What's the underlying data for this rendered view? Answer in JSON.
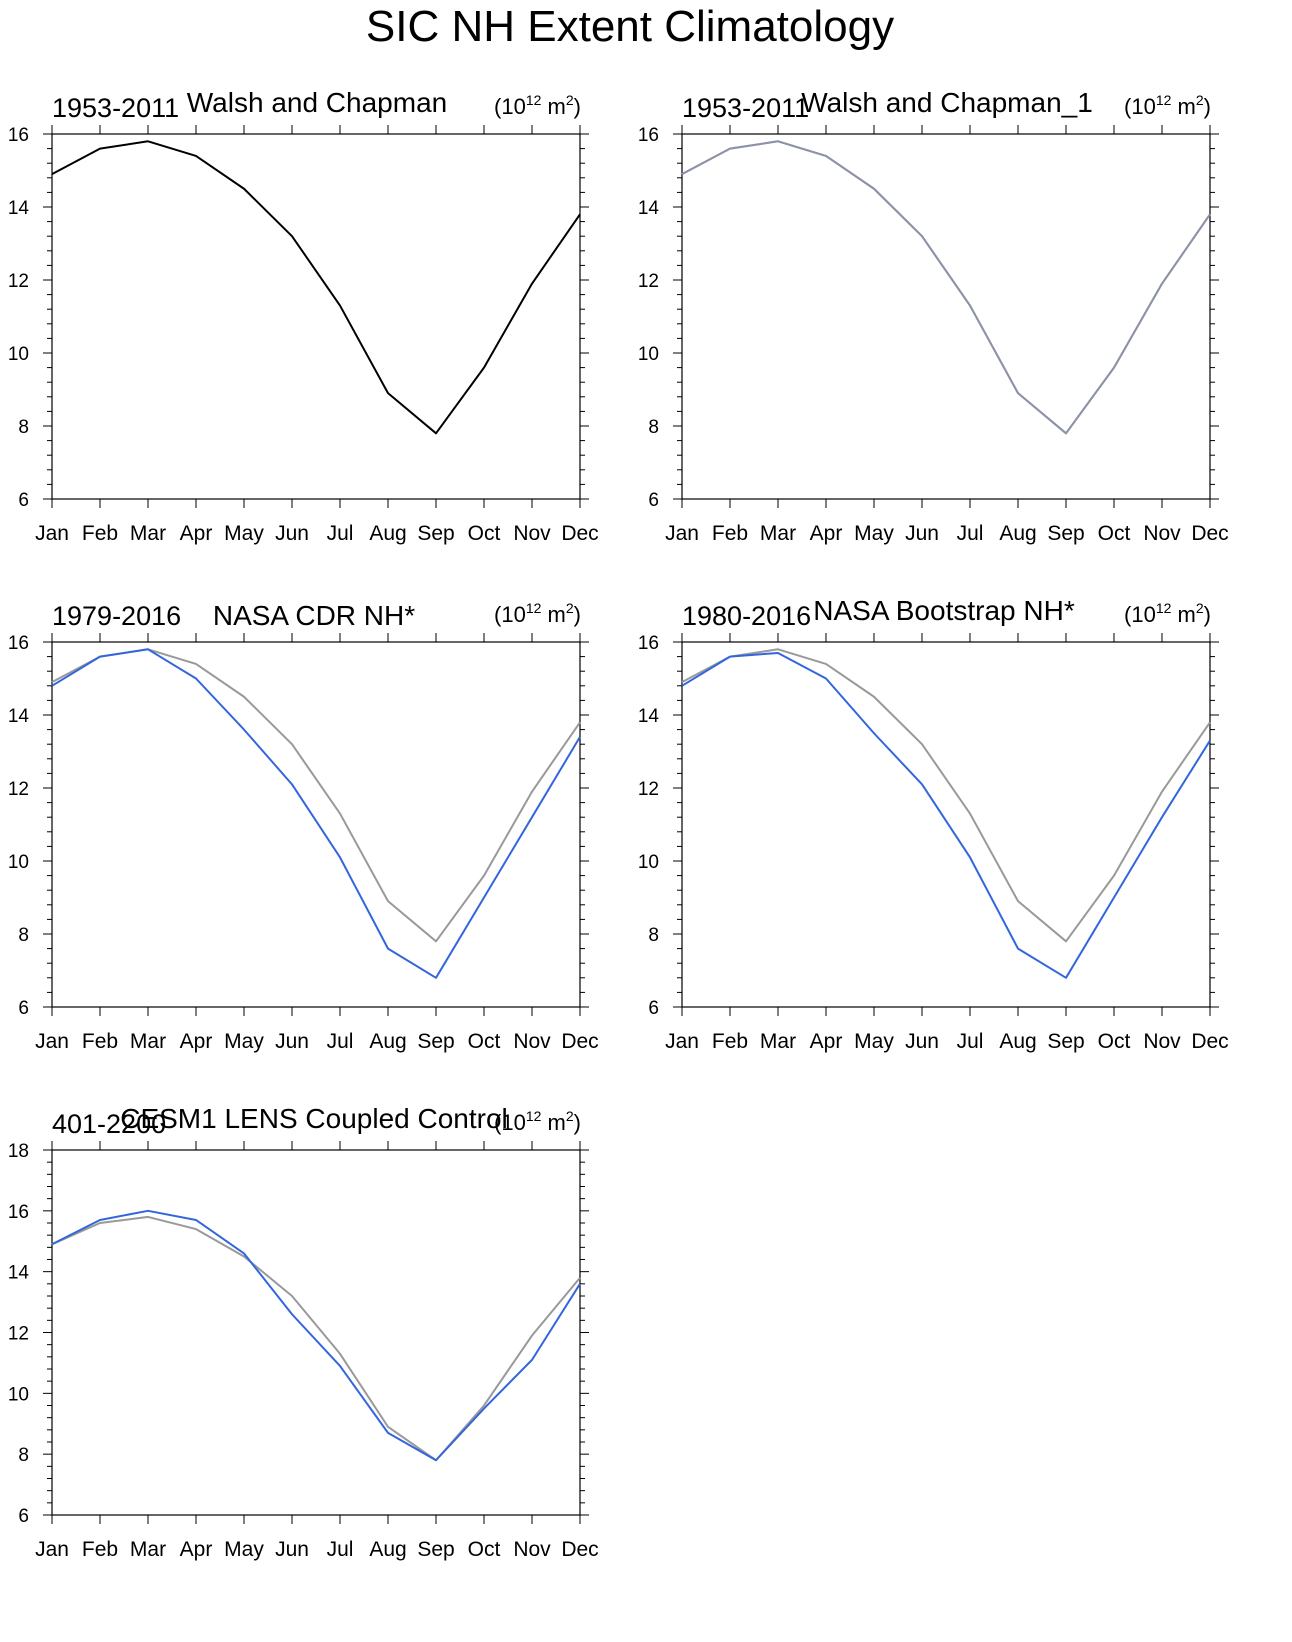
{
  "title": "SIC NH Extent Climatology",
  "colors": {
    "reference": "#999999",
    "model": "#3366dd",
    "single_ref": "#000000",
    "ref_panel2": "#8c93a8"
  },
  "units": {
    "base": "(10",
    "exp": "12",
    "unit": " m",
    "unit_exp": "2",
    "close": ")"
  },
  "chart_data": [
    {
      "type": "line",
      "left_string": "1953-2011",
      "center_string": "Walsh and Chapman",
      "categories": [
        "Jan",
        "Feb",
        "Mar",
        "Apr",
        "May",
        "Jun",
        "Jul",
        "Aug",
        "Sep",
        "Oct",
        "Nov",
        "Dec"
      ],
      "ylim": [
        6,
        16
      ],
      "yticks": [
        6,
        8,
        10,
        12,
        14,
        16
      ],
      "series": [
        {
          "name": "Walsh and Chapman",
          "color": "#000000",
          "values": [
            14.9,
            15.6,
            15.8,
            15.4,
            14.5,
            13.2,
            11.3,
            8.9,
            7.8,
            9.6,
            11.9,
            13.8
          ]
        }
      ]
    },
    {
      "type": "line",
      "left_string": "1953-2011",
      "center_string": "Walsh and Chapman_1",
      "categories": [
        "Jan",
        "Feb",
        "Mar",
        "Apr",
        "May",
        "Jun",
        "Jul",
        "Aug",
        "Sep",
        "Oct",
        "Nov",
        "Dec"
      ],
      "ylim": [
        6,
        16
      ],
      "yticks": [
        6,
        8,
        10,
        12,
        14,
        16
      ],
      "series": [
        {
          "name": "Walsh and Chapman",
          "color": "#999999",
          "values": [
            14.9,
            15.6,
            15.8,
            15.4,
            14.5,
            13.2,
            11.3,
            8.9,
            7.8,
            9.6,
            11.9,
            13.8
          ]
        },
        {
          "name": "Walsh and Chapman_1",
          "color": "#8c93a8",
          "values": [
            14.9,
            15.6,
            15.8,
            15.4,
            14.5,
            13.2,
            11.3,
            8.9,
            7.8,
            9.6,
            11.9,
            13.8
          ]
        }
      ]
    },
    {
      "type": "line",
      "left_string": "1979-2016",
      "center_string": "NASA CDR NH*",
      "categories": [
        "Jan",
        "Feb",
        "Mar",
        "Apr",
        "May",
        "Jun",
        "Jul",
        "Aug",
        "Sep",
        "Oct",
        "Nov",
        "Dec"
      ],
      "ylim": [
        6,
        16
      ],
      "yticks": [
        6,
        8,
        10,
        12,
        14,
        16
      ],
      "series": [
        {
          "name": "Walsh and Chapman",
          "color": "#999999",
          "values": [
            14.9,
            15.6,
            15.8,
            15.4,
            14.5,
            13.2,
            11.3,
            8.9,
            7.8,
            9.6,
            11.9,
            13.8
          ]
        },
        {
          "name": "NASA CDR NH*",
          "color": "#3366dd",
          "values": [
            14.8,
            15.6,
            15.8,
            15.0,
            13.6,
            12.1,
            10.1,
            7.6,
            6.8,
            9.0,
            11.2,
            13.4
          ]
        }
      ]
    },
    {
      "type": "line",
      "left_string": "1980-2016",
      "center_string": "NASA Bootstrap NH*",
      "categories": [
        "Jan",
        "Feb",
        "Mar",
        "Apr",
        "May",
        "Jun",
        "Jul",
        "Aug",
        "Sep",
        "Oct",
        "Nov",
        "Dec"
      ],
      "ylim": [
        6,
        16
      ],
      "yticks": [
        6,
        8,
        10,
        12,
        14,
        16
      ],
      "series": [
        {
          "name": "Walsh and Chapman",
          "color": "#999999",
          "values": [
            14.9,
            15.6,
            15.8,
            15.4,
            14.5,
            13.2,
            11.3,
            8.9,
            7.8,
            9.6,
            11.9,
            13.8
          ]
        },
        {
          "name": "NASA Bootstrap NH*",
          "color": "#3366dd",
          "values": [
            14.8,
            15.6,
            15.7,
            15.0,
            13.5,
            12.1,
            10.1,
            7.6,
            6.8,
            9.0,
            11.2,
            13.3
          ]
        }
      ]
    },
    {
      "type": "line",
      "left_string": "401-2200",
      "center_string": "CESM1 LENS Coupled Control",
      "categories": [
        "Jan",
        "Feb",
        "Mar",
        "Apr",
        "May",
        "Jun",
        "Jul",
        "Aug",
        "Sep",
        "Oct",
        "Nov",
        "Dec"
      ],
      "ylim": [
        6,
        18
      ],
      "yticks": [
        6,
        8,
        10,
        12,
        14,
        16,
        18
      ],
      "series": [
        {
          "name": "Walsh and Chapman",
          "color": "#999999",
          "values": [
            14.9,
            15.6,
            15.8,
            15.4,
            14.5,
            13.2,
            11.3,
            8.9,
            7.8,
            9.6,
            11.9,
            13.8
          ]
        },
        {
          "name": "CESM1 LENS Coupled Control",
          "color": "#3366dd",
          "values": [
            14.9,
            15.7,
            16.0,
            15.7,
            14.6,
            12.6,
            10.9,
            8.7,
            7.8,
            9.5,
            11.1,
            13.6
          ]
        }
      ]
    }
  ]
}
